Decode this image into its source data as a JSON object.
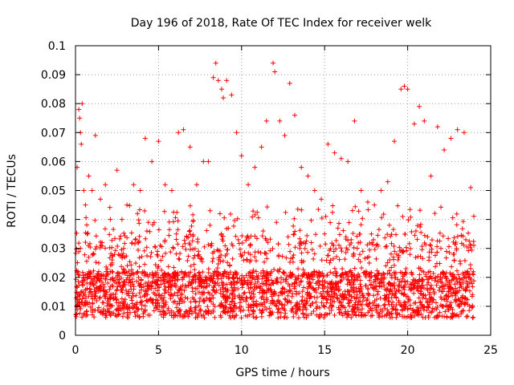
{
  "chart_data": {
    "type": "scatter",
    "title": "Day 196 of 2018, Rate Of TEC Index for receiver welk",
    "xlabel": "GPS time / hours",
    "ylabel": "ROTI / TECUs",
    "xlim": [
      0,
      25
    ],
    "ylim": [
      0,
      0.1
    ],
    "x_ticks": [
      "0",
      "5",
      "10",
      "15",
      "20",
      "25"
    ],
    "y_ticks": [
      "0",
      "0.01",
      "0.02",
      "0.03",
      "0.04",
      "0.05",
      "0.06",
      "0.07",
      "0.08",
      "0.09",
      "0.1"
    ],
    "grid": true,
    "marker": "+",
    "color": "#ff0000",
    "series": [
      {
        "x": [
          0.1,
          0.2,
          0.25,
          0.3,
          0.35,
          0.4,
          0.5,
          0.6,
          0.8,
          1.0,
          1.2,
          1.5,
          1.8,
          2.1,
          2.5,
          2.8,
          3.1,
          3.5,
          3.9,
          4.2,
          4.6,
          5.0,
          5.4,
          5.8,
          6.2,
          6.5,
          6.9,
          7.3,
          7.7,
          8.0,
          8.3,
          8.45,
          8.6,
          8.8,
          8.9,
          9.1,
          9.4,
          9.7,
          10.0,
          10.4,
          10.8,
          11.2,
          11.5,
          11.9,
          12.0,
          12.3,
          12.6,
          12.9,
          13.2,
          13.6,
          14.0,
          14.4,
          14.8,
          15.2,
          15.6,
          16.0,
          16.4,
          16.8,
          17.2,
          17.6,
          18.0,
          18.4,
          18.8,
          19.2,
          19.6,
          19.8,
          20.0,
          20.4,
          20.7,
          21.0,
          21.4,
          21.8,
          22.2,
          22.6,
          23.0,
          23.4,
          23.8,
          0.3,
          0.7,
          1.1,
          1.6,
          2.2,
          2.9,
          3.6,
          4.3,
          5.1,
          5.9,
          6.7,
          7.4,
          8.1,
          8.7,
          9.2,
          9.8,
          10.5,
          11.3,
          12.1,
          12.8,
          13.5,
          14.2,
          15.0,
          15.8,
          16.6,
          17.3,
          18.1,
          18.9,
          19.7,
          20.5,
          21.2,
          22.0,
          22.8,
          23.5,
          0.5,
          1.4,
          2.6,
          3.8,
          4.9,
          6.0,
          7.1,
          8.5,
          9.5,
          10.7,
          11.8,
          13.0,
          14.1,
          15.4,
          16.5,
          17.7,
          18.6,
          19.9,
          21.1,
          22.3,
          23.6
        ],
        "y": [
          0.058,
          0.078,
          0.075,
          0.07,
          0.066,
          0.08,
          0.05,
          0.045,
          0.055,
          0.05,
          0.069,
          0.047,
          0.052,
          0.04,
          0.057,
          0.04,
          0.045,
          0.052,
          0.05,
          0.068,
          0.06,
          0.067,
          0.052,
          0.05,
          0.07,
          0.071,
          0.065,
          0.052,
          0.06,
          0.06,
          0.089,
          0.094,
          0.088,
          0.085,
          0.082,
          0.088,
          0.083,
          0.07,
          0.062,
          0.052,
          0.058,
          0.065,
          0.074,
          0.094,
          0.091,
          0.074,
          0.069,
          0.087,
          0.076,
          0.058,
          0.055,
          0.05,
          0.047,
          0.066,
          0.063,
          0.061,
          0.06,
          0.074,
          0.05,
          0.046,
          0.045,
          0.05,
          0.053,
          0.067,
          0.085,
          0.086,
          0.085,
          0.073,
          0.079,
          0.074,
          0.055,
          0.072,
          0.064,
          0.068,
          0.071,
          0.07,
          0.051,
          0.03,
          0.035,
          0.028,
          0.032,
          0.025,
          0.03,
          0.033,
          0.036,
          0.031,
          0.03,
          0.034,
          0.029,
          0.038,
          0.042,
          0.037,
          0.033,
          0.031,
          0.036,
          0.039,
          0.034,
          0.03,
          0.032,
          0.035,
          0.037,
          0.033,
          0.029,
          0.031,
          0.038,
          0.041,
          0.036,
          0.034,
          0.03,
          0.028,
          0.033,
          0.02,
          0.022,
          0.018,
          0.02,
          0.021,
          0.019,
          0.02,
          0.022,
          0.021,
          0.02,
          0.019,
          0.021,
          0.02,
          0.018,
          0.022,
          0.021,
          0.02,
          0.023,
          0.021,
          0.02,
          0.022
        ]
      }
    ]
  }
}
